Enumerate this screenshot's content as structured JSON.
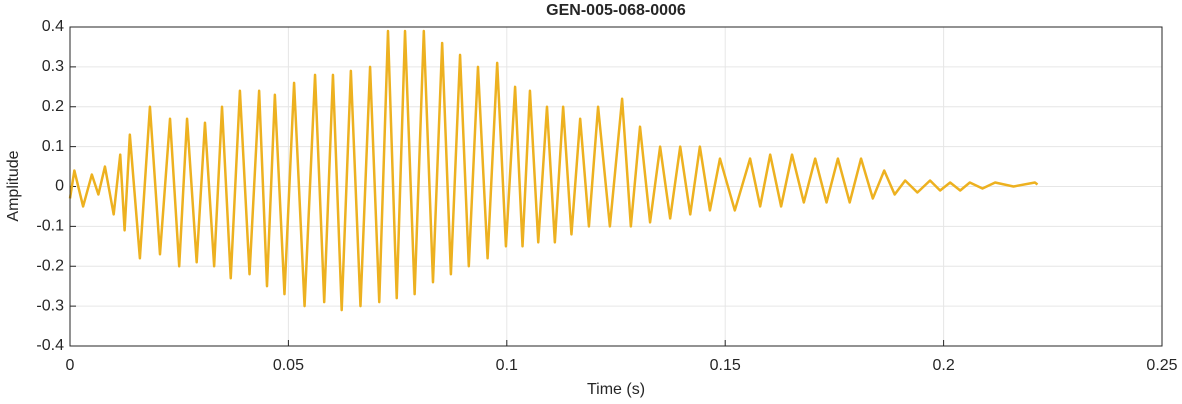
{
  "chart_data": {
    "type": "line",
    "title": "GEN-005-068-0006",
    "x_label": "Time (s)",
    "y_label": "Amplitude",
    "xlim": [
      0,
      0.25
    ],
    "xticks": [
      0,
      0.05,
      0.1,
      0.15,
      0.2,
      0.25
    ],
    "ylim": [
      -0.4,
      0.4
    ],
    "yticks": [
      -0.4,
      -0.3,
      -0.2,
      -0.1,
      0,
      0.1,
      0.2,
      0.3,
      0.4
    ],
    "grid": true,
    "x": [
      0,
      0.001,
      0.003,
      0.005,
      0.0065,
      0.008,
      0.01,
      0.0115,
      0.0125,
      0.0137,
      0.016,
      0.0183,
      0.0206,
      0.0229,
      0.025,
      0.0268,
      0.029,
      0.0309,
      0.033,
      0.0348,
      0.0368,
      0.0389,
      0.0411,
      0.0433,
      0.0451,
      0.0469,
      0.0491,
      0.0513,
      0.0537,
      0.0561,
      0.0582,
      0.0602,
      0.0622,
      0.0643,
      0.0665,
      0.0687,
      0.0708,
      0.0728,
      0.0748,
      0.0767,
      0.0789,
      0.081,
      0.0831,
      0.0852,
      0.0872,
      0.0893,
      0.0913,
      0.0934,
      0.0956,
      0.0978,
      0.0998,
      0.1019,
      0.1036,
      0.1053,
      0.1072,
      0.1092,
      0.111,
      0.1129,
      0.1148,
      0.1168,
      0.1188,
      0.1209,
      0.1236,
      0.1264,
      0.1284,
      0.1305,
      0.1328,
      0.1351,
      0.1374,
      0.1397,
      0.142,
      0.1442,
      0.1465,
      0.1488,
      0.1522,
      0.1557,
      0.158,
      0.1603,
      0.1628,
      0.1653,
      0.168,
      0.1706,
      0.1732,
      0.1758,
      0.1785,
      0.1811,
      0.1838,
      0.1864,
      0.1888,
      0.1912,
      0.194,
      0.1969,
      0.1992,
      0.2015,
      0.2038,
      0.206,
      0.2089,
      0.2118,
      0.216,
      0.2209,
      0.2215
    ],
    "series": [
      {
        "name": "GEN-005-068-0006",
        "color": "#EDB120",
        "values": [
          -0.03,
          0.04,
          -0.05,
          0.03,
          -0.02,
          0.05,
          -0.07,
          0.08,
          -0.11,
          0.13,
          -0.18,
          0.2,
          -0.17,
          0.17,
          -0.2,
          0.17,
          -0.19,
          0.16,
          -0.2,
          0.2,
          -0.23,
          0.24,
          -0.22,
          0.24,
          -0.25,
          0.23,
          -0.27,
          0.26,
          -0.3,
          0.28,
          -0.29,
          0.28,
          -0.31,
          0.29,
          -0.3,
          0.3,
          -0.29,
          0.39,
          -0.28,
          0.39,
          -0.27,
          0.39,
          -0.24,
          0.36,
          -0.22,
          0.33,
          -0.2,
          0.3,
          -0.18,
          0.31,
          -0.15,
          0.25,
          -0.15,
          0.24,
          -0.14,
          0.2,
          -0.14,
          0.2,
          -0.12,
          0.17,
          -0.1,
          0.2,
          -0.1,
          0.22,
          -0.1,
          0.15,
          -0.09,
          0.1,
          -0.08,
          0.1,
          -0.07,
          0.1,
          -0.06,
          0.07,
          -0.06,
          0.07,
          -0.05,
          0.08,
          -0.05,
          0.08,
          -0.04,
          0.07,
          -0.04,
          0.07,
          -0.04,
          0.07,
          -0.03,
          0.04,
          -0.02,
          0.015,
          -0.015,
          0.015,
          -0.01,
          0.01,
          -0.01,
          0.01,
          -0.005,
          0.01,
          0.0,
          0.01,
          0.005
        ]
      }
    ]
  }
}
